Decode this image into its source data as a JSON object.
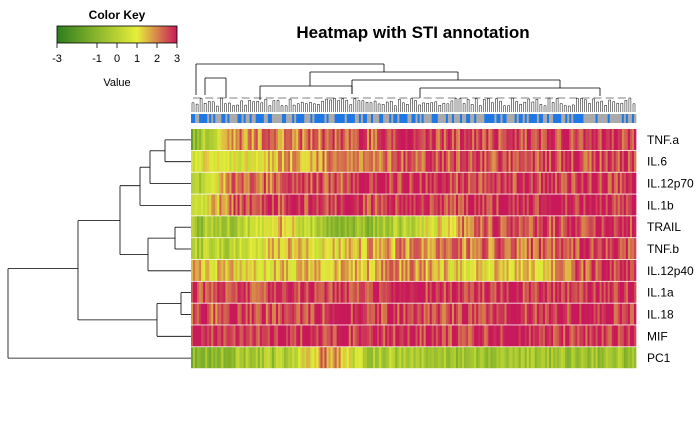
{
  "chart_data": {
    "type": "heatmap",
    "title": "Heatmap with STI annotation",
    "color_key": {
      "title": "Color Key",
      "xlabel": "Value",
      "ticks": [
        -3,
        -1,
        0,
        1,
        2,
        3
      ],
      "range": [
        -3,
        3
      ],
      "colors": [
        "#2e7d1e",
        "#e6ee3a",
        "#c8185a"
      ]
    },
    "rows": [
      "TNF.a",
      "IL.6",
      "IL.12p70",
      "IL.1b",
      "TRAIL",
      "TNF.b",
      "IL.12p40",
      "IL.1a",
      "IL.18",
      "MIF",
      "PC1"
    ],
    "n_columns": 220,
    "annotation_colors": {
      "group_a": "#aaaaaa",
      "group_b": "#1e78e6"
    },
    "row_profiles": [
      [
        -1.0,
        2.0,
        2.0,
        2.2,
        2.4,
        2.5,
        2.6,
        2.6,
        2.6,
        2.7,
        2.7
      ],
      [
        0.9,
        0.9,
        1.5,
        2.0,
        2.2,
        2.4,
        2.5,
        2.5,
        2.6,
        2.6,
        2.6
      ],
      [
        -0.6,
        2.2,
        2.3,
        2.5,
        2.6,
        2.7,
        2.7,
        2.7,
        2.7,
        2.8,
        2.8
      ],
      [
        0.0,
        2.5,
        2.6,
        2.7,
        2.7,
        2.8,
        2.8,
        2.8,
        2.8,
        2.8,
        2.8
      ],
      [
        -0.5,
        -0.3,
        1.5,
        -0.6,
        -0.7,
        0.2,
        1.8,
        2.5,
        2.6,
        2.6,
        2.7
      ],
      [
        -0.2,
        0.0,
        1.5,
        1.0,
        1.5,
        2.0,
        2.0,
        2.2,
        2.3,
        2.4,
        2.5
      ],
      [
        1.4,
        1.2,
        1.3,
        1.5,
        1.5,
        2.0,
        1.2,
        1.3,
        1.4,
        2.6,
        2.8
      ],
      [
        2.6,
        2.6,
        2.7,
        2.7,
        2.8,
        2.8,
        2.8,
        2.8,
        2.8,
        2.8,
        2.8
      ],
      [
        2.3,
        2.5,
        2.6,
        2.6,
        2.7,
        2.7,
        2.7,
        2.7,
        2.8,
        2.8,
        2.8
      ],
      [
        2.8,
        2.8,
        2.8,
        2.8,
        2.8,
        2.8,
        2.8,
        2.8,
        2.8,
        2.8,
        2.8
      ],
      [
        -0.8,
        -0.6,
        -0.3,
        2.2,
        -0.2,
        -0.2,
        -0.4,
        -0.6,
        -0.4,
        -0.5,
        -0.6
      ]
    ]
  }
}
